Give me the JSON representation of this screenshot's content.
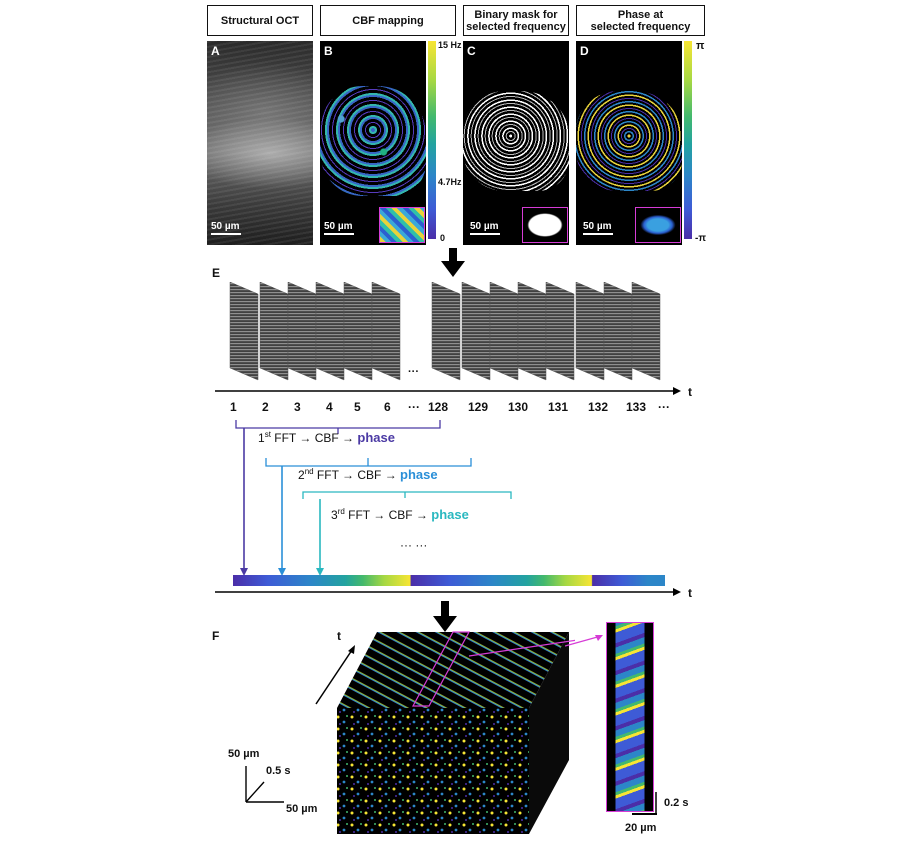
{
  "headers": {
    "a": "Structural OCT",
    "b": "CBF mapping",
    "c_line1": "Binary mask for",
    "c_line2": "selected frequency",
    "d_line1": "Phase at",
    "d_line2": "selected frequency"
  },
  "panel_letters": {
    "a": "A",
    "b": "B",
    "c": "C",
    "d": "D",
    "e": "E",
    "f": "F"
  },
  "scale_bars": {
    "a": "50 µm",
    "b": "50 µm",
    "c": "50 µm",
    "d": "50 µm"
  },
  "colorbar_b": {
    "top": "15 Hz",
    "mid": "4.7Hz",
    "bottom": "0"
  },
  "colorbar_d": {
    "top": "π",
    "bottom": "-π"
  },
  "timeline": {
    "axis_label": "t",
    "ellipsis": "···",
    "numbers_left": [
      "1",
      "2",
      "3",
      "4",
      "5",
      "6"
    ],
    "numbers_right": [
      "128",
      "129",
      "130",
      "131",
      "132",
      "133"
    ],
    "trailing": "···"
  },
  "fft_rows": [
    {
      "ord": "1",
      "sup": "st",
      "text": " FFT → CBF → ",
      "phase": "phase",
      "color": "#4b3aa4"
    },
    {
      "ord": "2",
      "sup": "nd",
      "text": " FFT → CBF → ",
      "phase": "phase",
      "color": "#2a8fd8"
    },
    {
      "ord": "3",
      "sup": "rd",
      "text": " FFT → CBF → ",
      "phase": "phase",
      "color": "#2ab8c0"
    }
  ],
  "more": "··· ···",
  "colors": {
    "purple": "#4b3aa4",
    "blue": "#2a8fd8",
    "teal": "#2ab8c0",
    "magenta": "#d63cd6"
  },
  "panel_f": {
    "t_label": "t",
    "axis_y": "50 µm",
    "axis_t": "0.5 s",
    "axis_x": "50 µm",
    "inset_time": "0.2 s",
    "inset_space": "20 µm"
  }
}
